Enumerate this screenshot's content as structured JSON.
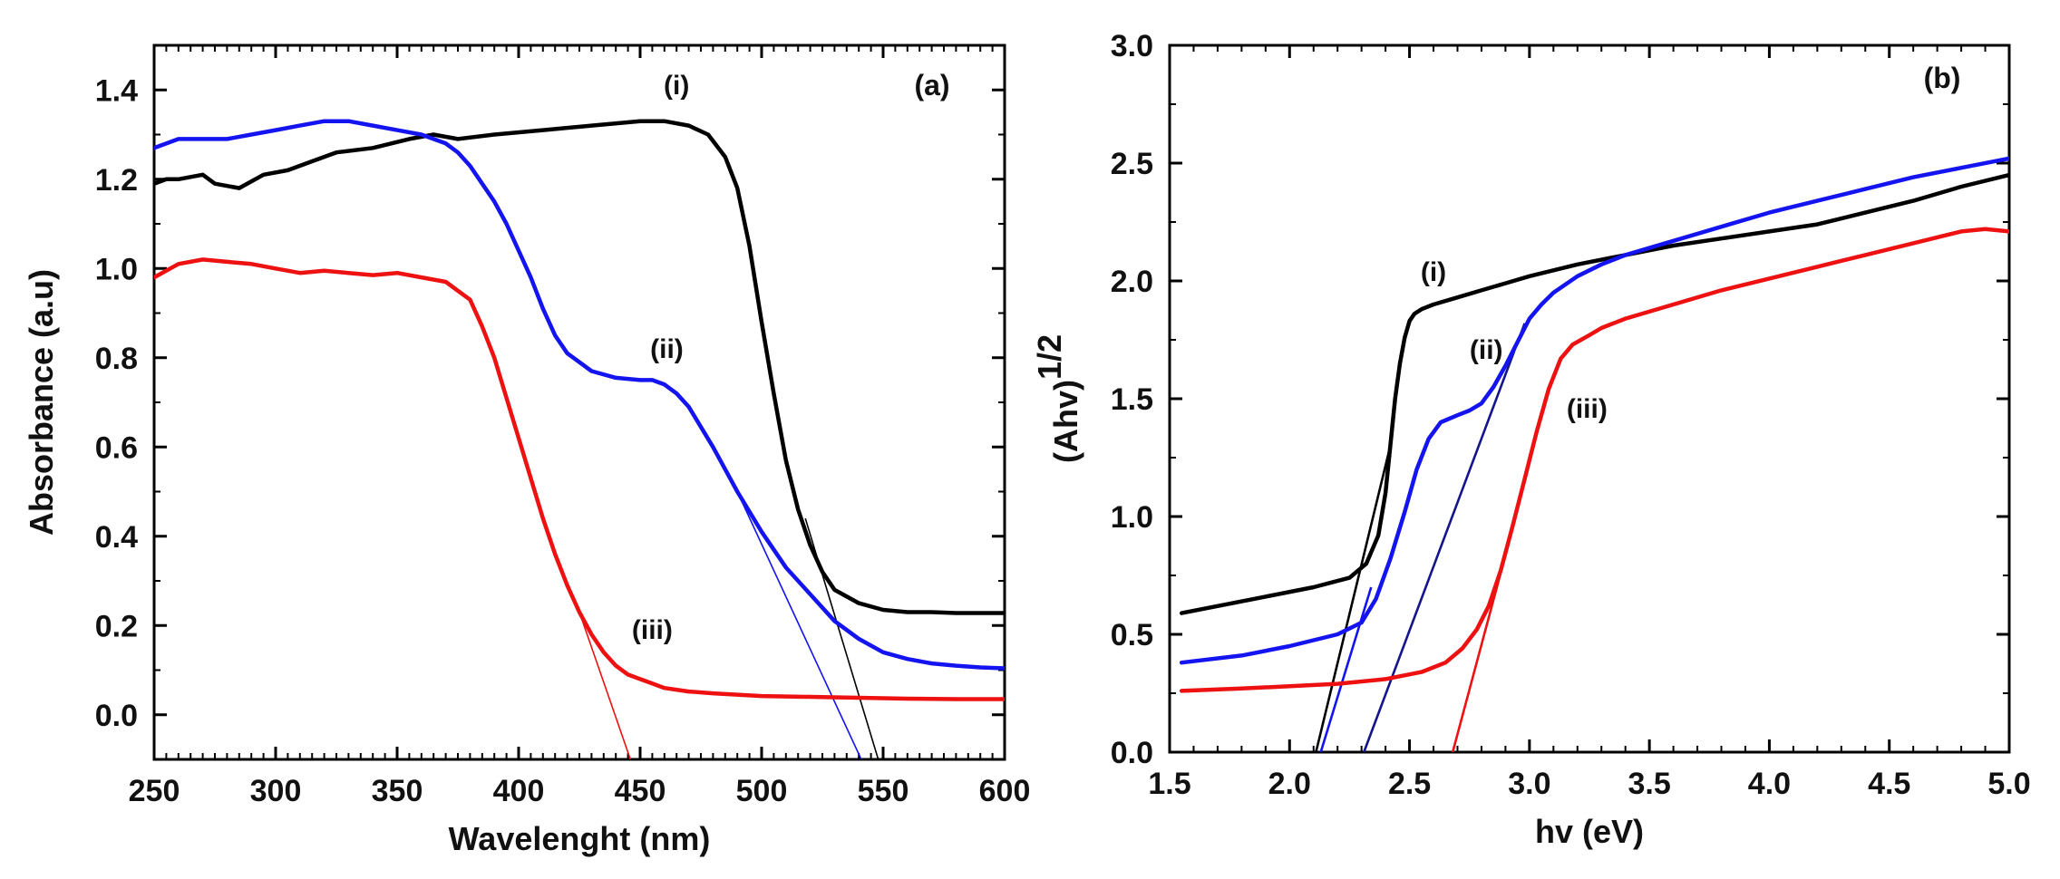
{
  "chart_data": [
    {
      "type": "line",
      "panel_label": "(a)",
      "xlabel": "Wavelenght (nm)",
      "ylabel": "Absorbance (a.u)",
      "xlim": [
        250,
        600
      ],
      "ylim": [
        -0.1,
        1.5
      ],
      "xticks": [
        250,
        300,
        350,
        400,
        450,
        500,
        550,
        600
      ],
      "xtick_labels": [
        "250",
        "300",
        "350",
        "400",
        "450",
        "500",
        "550",
        "600"
      ],
      "yticks": [
        0.0,
        0.2,
        0.4,
        0.6,
        0.8,
        1.0,
        1.2,
        1.4
      ],
      "ytick_labels": [
        "0.0",
        "0.2",
        "0.4",
        "0.6",
        "0.8",
        "1.0",
        "1.2",
        "1.4"
      ],
      "grid": false,
      "series": [
        {
          "label": "(i)",
          "color": "#000000",
          "x": [
            250,
            255,
            260,
            270,
            275,
            285,
            295,
            305,
            315,
            325,
            340,
            355,
            365,
            375,
            390,
            410,
            430,
            450,
            460,
            470,
            478,
            485,
            490,
            495,
            500,
            505,
            510,
            515,
            520,
            525,
            530,
            540,
            550,
            560,
            570,
            580,
            590,
            600
          ],
          "y": [
            1.19,
            1.2,
            1.2,
            1.21,
            1.19,
            1.18,
            1.21,
            1.22,
            1.24,
            1.26,
            1.27,
            1.29,
            1.3,
            1.29,
            1.3,
            1.31,
            1.32,
            1.33,
            1.33,
            1.32,
            1.3,
            1.25,
            1.18,
            1.05,
            0.88,
            0.72,
            0.57,
            0.46,
            0.38,
            0.32,
            0.28,
            0.25,
            0.235,
            0.23,
            0.23,
            0.228,
            0.228,
            0.228
          ]
        },
        {
          "label": "(ii)",
          "color": "#1414f0",
          "x": [
            250,
            260,
            270,
            280,
            290,
            300,
            310,
            320,
            330,
            340,
            350,
            360,
            370,
            375,
            380,
            385,
            390,
            395,
            400,
            405,
            410,
            415,
            420,
            430,
            440,
            450,
            455,
            460,
            465,
            470,
            480,
            490,
            500,
            510,
            520,
            530,
            540,
            550,
            560,
            570,
            580,
            590,
            600
          ],
          "y": [
            1.27,
            1.29,
            1.29,
            1.29,
            1.3,
            1.31,
            1.32,
            1.33,
            1.33,
            1.32,
            1.31,
            1.3,
            1.28,
            1.26,
            1.23,
            1.19,
            1.15,
            1.1,
            1.04,
            0.98,
            0.91,
            0.85,
            0.81,
            0.77,
            0.755,
            0.75,
            0.75,
            0.74,
            0.72,
            0.69,
            0.6,
            0.5,
            0.41,
            0.33,
            0.27,
            0.21,
            0.17,
            0.14,
            0.125,
            0.115,
            0.11,
            0.106,
            0.104
          ]
        },
        {
          "label": "(iii)",
          "color": "#ee1111",
          "x": [
            250,
            260,
            270,
            280,
            290,
            300,
            310,
            320,
            330,
            340,
            350,
            360,
            370,
            380,
            385,
            390,
            395,
            400,
            405,
            410,
            415,
            420,
            425,
            430,
            435,
            440,
            445,
            450,
            455,
            460,
            470,
            480,
            490,
            500,
            520,
            540,
            560,
            580,
            600
          ],
          "y": [
            0.98,
            1.01,
            1.02,
            1.015,
            1.01,
            1.0,
            0.99,
            0.995,
            0.99,
            0.985,
            0.99,
            0.98,
            0.97,
            0.93,
            0.87,
            0.8,
            0.71,
            0.62,
            0.53,
            0.44,
            0.36,
            0.29,
            0.23,
            0.18,
            0.14,
            0.11,
            0.09,
            0.08,
            0.07,
            0.06,
            0.052,
            0.048,
            0.045,
            0.042,
            0.04,
            0.038,
            0.036,
            0.035,
            0.035
          ]
        }
      ],
      "tangent_lines": [
        {
          "color": "#000000",
          "x": [
            518,
            548
          ],
          "y": [
            0.44,
            -0.1
          ]
        },
        {
          "color": "#1414f0",
          "x": [
            490,
            541
          ],
          "y": [
            0.5,
            -0.1
          ]
        },
        {
          "color": "#ee1111",
          "x": [
            425,
            446
          ],
          "y": [
            0.23,
            -0.1
          ]
        }
      ],
      "annotations": [
        {
          "text": "(i)",
          "x": 465,
          "y": 1.39
        },
        {
          "text": "(ii)",
          "x": 461,
          "y": 0.8
        },
        {
          "text": "(iii)",
          "x": 455,
          "y": 0.17
        }
      ]
    },
    {
      "type": "line",
      "panel_label": "(b)",
      "xlabel": "hv (eV)",
      "ylabel": "(Ahv)",
      "ylabel_superscript": "1/2",
      "xlim": [
        1.5,
        5.0
      ],
      "ylim": [
        0.0,
        3.0
      ],
      "xticks": [
        1.5,
        2.0,
        2.5,
        3.0,
        3.5,
        4.0,
        4.5,
        5.0
      ],
      "xtick_labels": [
        "1.5",
        "2.0",
        "2.5",
        "3.0",
        "3.5",
        "4.0",
        "4.5",
        "5.0"
      ],
      "yticks": [
        0.0,
        0.5,
        1.0,
        1.5,
        2.0,
        2.5,
        3.0
      ],
      "ytick_labels": [
        "0.0",
        "0.5",
        "1.0",
        "1.5",
        "2.0",
        "2.5",
        "3.0"
      ],
      "grid": false,
      "series": [
        {
          "label": "(i)",
          "color": "#000000",
          "x": [
            1.55,
            1.7,
            1.9,
            2.1,
            2.25,
            2.32,
            2.37,
            2.4,
            2.42,
            2.44,
            2.46,
            2.48,
            2.5,
            2.52,
            2.55,
            2.6,
            2.7,
            2.8,
            2.9,
            3.0,
            3.2,
            3.4,
            3.6,
            3.8,
            4.0,
            4.2,
            4.4,
            4.6,
            4.8,
            5.0
          ],
          "y": [
            0.59,
            0.62,
            0.66,
            0.7,
            0.74,
            0.8,
            0.92,
            1.1,
            1.3,
            1.5,
            1.65,
            1.76,
            1.83,
            1.86,
            1.88,
            1.9,
            1.93,
            1.96,
            1.99,
            2.02,
            2.07,
            2.11,
            2.15,
            2.18,
            2.21,
            2.24,
            2.29,
            2.34,
            2.4,
            2.45
          ]
        },
        {
          "label": "(ii)",
          "color": "#1414f0",
          "x": [
            1.55,
            1.8,
            2.0,
            2.2,
            2.3,
            2.36,
            2.42,
            2.48,
            2.53,
            2.58,
            2.63,
            2.7,
            2.75,
            2.8,
            2.85,
            2.9,
            2.95,
            3.0,
            3.05,
            3.1,
            3.2,
            3.3,
            3.4,
            3.6,
            3.8,
            4.0,
            4.2,
            4.4,
            4.6,
            4.8,
            5.0
          ],
          "y": [
            0.38,
            0.41,
            0.45,
            0.5,
            0.55,
            0.65,
            0.82,
            1.02,
            1.2,
            1.33,
            1.4,
            1.43,
            1.45,
            1.48,
            1.55,
            1.64,
            1.74,
            1.84,
            1.9,
            1.95,
            2.02,
            2.07,
            2.11,
            2.17,
            2.23,
            2.29,
            2.34,
            2.39,
            2.44,
            2.48,
            2.52
          ]
        },
        {
          "label": "(iii)",
          "color": "#ee1111",
          "x": [
            1.55,
            1.8,
            2.0,
            2.2,
            2.4,
            2.55,
            2.65,
            2.72,
            2.78,
            2.83,
            2.88,
            2.93,
            2.98,
            3.03,
            3.08,
            3.13,
            3.18,
            3.25,
            3.3,
            3.4,
            3.6,
            3.8,
            4.0,
            4.2,
            4.4,
            4.6,
            4.8,
            4.9,
            5.0
          ],
          "y": [
            0.26,
            0.27,
            0.28,
            0.29,
            0.31,
            0.34,
            0.38,
            0.44,
            0.52,
            0.62,
            0.77,
            0.96,
            1.16,
            1.36,
            1.54,
            1.67,
            1.73,
            1.77,
            1.8,
            1.84,
            1.9,
            1.96,
            2.01,
            2.06,
            2.11,
            2.16,
            2.21,
            2.22,
            2.21
          ]
        }
      ],
      "tangent_lines": [
        {
          "color": "#000000",
          "x": [
            2.11,
            2.42
          ],
          "y": [
            0.0,
            1.3
          ]
        },
        {
          "color": "#1414f0",
          "x": [
            2.13,
            2.34
          ],
          "y": [
            0.0,
            0.7
          ]
        },
        {
          "color": "#14148c",
          "x": [
            2.31,
            2.98
          ],
          "y": [
            0.0,
            1.82
          ]
        },
        {
          "color": "#ee1111",
          "x": [
            2.68,
            2.93
          ],
          "y": [
            0.0,
            0.95
          ]
        }
      ],
      "annotations": [
        {
          "text": "(i)",
          "x": 2.6,
          "y": 2.0
        },
        {
          "text": "(ii)",
          "x": 2.82,
          "y": 1.67
        },
        {
          "text": "(iii)",
          "x": 3.24,
          "y": 1.42
        }
      ]
    }
  ]
}
